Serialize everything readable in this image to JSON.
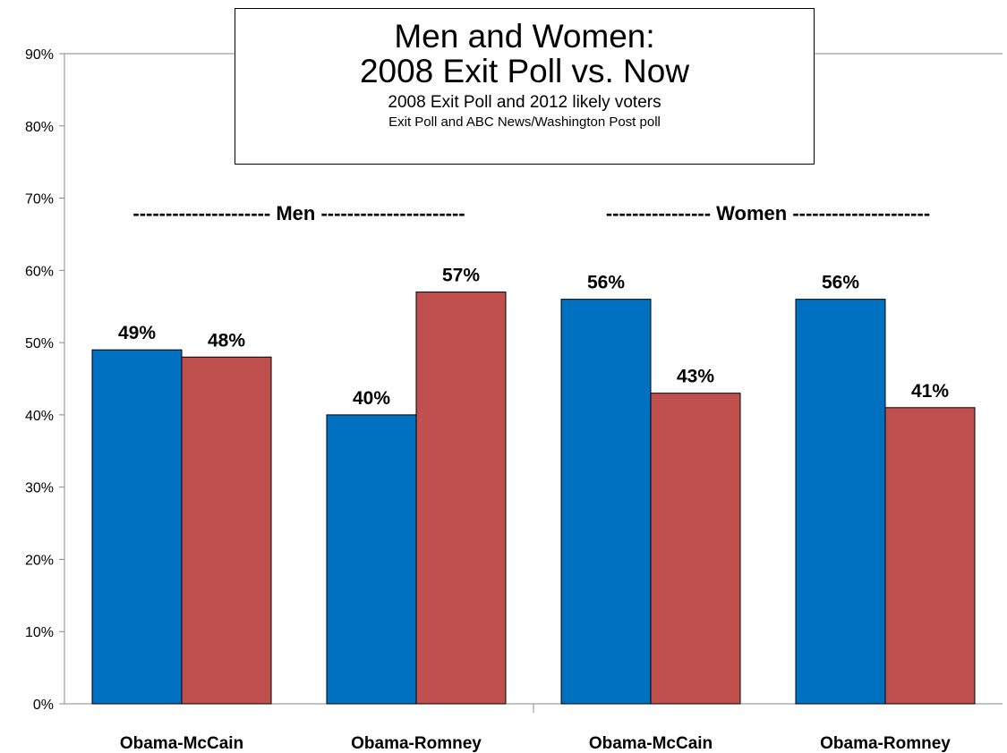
{
  "chart_data": {
    "type": "bar",
    "title": "Men and Women:",
    "title_line2": "2008 Exit Poll vs. Now",
    "subtitle": "2008 Exit Poll and 2012 likely voters",
    "source": "Exit Poll and ABC News/Washington Post poll",
    "categories": [
      "Obama-McCain",
      "Obama-Romney",
      "Obama-McCain",
      "Obama-Romney"
    ],
    "series": [
      {
        "values": [
          49,
          40,
          56,
          56
        ],
        "labels": [
          "49%",
          "40%",
          "56%",
          "56%"
        ],
        "color": "#0070C0"
      },
      {
        "values": [
          48,
          57,
          43,
          41
        ],
        "labels": [
          "48%",
          "57%",
          "43%",
          "41%"
        ],
        "color": "#C0504D"
      }
    ],
    "groups": [
      {
        "label": "--------------------- Men ----------------------"
      },
      {
        "label": "---------------- Women ---------------------"
      }
    ],
    "yticks": [
      "0%",
      "10%",
      "20%",
      "30%",
      "40%",
      "50%",
      "60%",
      "70%",
      "80%",
      "90%"
    ],
    "ylim": [
      0,
      90
    ],
    "ystep": 10,
    "xlabel": "",
    "ylabel": "",
    "grid": false,
    "legend": "none"
  }
}
